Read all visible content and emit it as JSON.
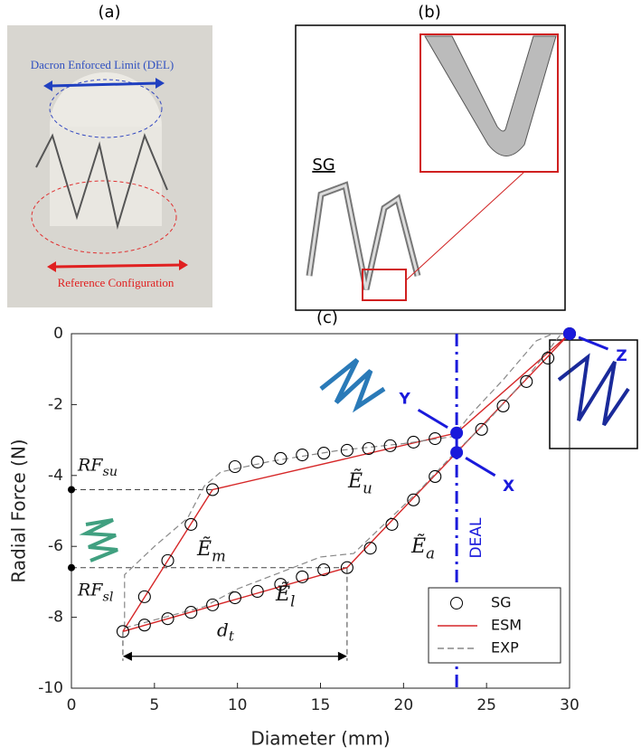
{
  "panels": {
    "a": {
      "label": "(a)",
      "top_text": "Dacron Enforced Limit (DEL)",
      "bottom_text": "Reference Configuration"
    },
    "b": {
      "label": "(b)",
      "stent_label": "SG"
    }
  },
  "chart_data": {
    "type": "line",
    "panel_label": "(c)",
    "xlabel": "Diameter (mm)",
    "ylabel": "Radial Force (N)",
    "xlim": [
      0,
      30
    ],
    "ylim": [
      -10,
      0
    ],
    "xticks": [
      0,
      5,
      10,
      15,
      20,
      25,
      30
    ],
    "yticks": [
      0,
      -2,
      -4,
      -6,
      -8,
      -10
    ],
    "grid": false,
    "legend": "lower right",
    "series": [
      {
        "name": "SG",
        "color": "#000000",
        "style": "marker",
        "x": [
          3.1,
          4.4,
          5.8,
          7.2,
          8.5,
          9.85,
          11.2,
          12.6,
          13.9,
          15.2,
          16.6,
          18.0,
          19.3,
          20.6,
          21.9,
          24.7,
          26.0,
          27.4,
          28.7,
          30.0,
          21.9,
          20.6,
          19.2,
          17.9,
          16.6,
          15.2,
          13.9,
          12.6,
          11.2,
          9.85,
          8.5,
          7.2,
          5.8,
          4.4
        ],
        "y": [
          -8.4,
          -8.22,
          -8.04,
          -7.86,
          -7.65,
          -7.45,
          -7.27,
          -7.07,
          -6.86,
          -6.66,
          -6.6,
          -6.05,
          -5.38,
          -4.69,
          -4.03,
          -2.7,
          -2.04,
          -1.35,
          -0.69,
          0,
          -2.96,
          -3.06,
          -3.16,
          -3.24,
          -3.29,
          -3.37,
          -3.42,
          -3.52,
          -3.62,
          -3.75,
          -4.4,
          -5.38,
          -6.4,
          -7.42
        ]
      },
      {
        "name": "ESM",
        "color": "#d62728",
        "style": "solid",
        "x": [
          3.1,
          16.6,
          30.0,
          23.2,
          8.5,
          3.1
        ],
        "y": [
          -8.4,
          -6.6,
          0,
          -2.8,
          -4.4,
          -8.4
        ]
      },
      {
        "name": "EXP",
        "color": "#888888",
        "style": "dashed",
        "x": [
          3.2,
          3.2,
          5,
          7,
          8,
          9,
          12,
          16,
          20,
          23,
          24,
          26,
          28,
          29,
          null,
          3.2,
          8,
          10,
          15,
          17,
          19,
          21,
          23,
          25,
          27.5,
          29.5
        ],
        "y": [
          -8.3,
          -6.8,
          -6.0,
          -5.2,
          -4.3,
          -3.9,
          -3.6,
          -3.3,
          -3.1,
          -2.9,
          -2.3,
          -1.3,
          -0.2,
          0,
          null,
          -8.3,
          -7.7,
          -7.2,
          -6.3,
          -6.2,
          -5.3,
          -4.4,
          -3.4,
          -2.5,
          -1.2,
          0
        ]
      }
    ],
    "markers": [
      {
        "label": "X",
        "x": 23.2,
        "y": -3.35
      },
      {
        "label": "Y",
        "x": 23.2,
        "y": -2.8
      },
      {
        "label": "Z",
        "x": 30,
        "y": 0
      }
    ],
    "deal_line": {
      "x": 23.2,
      "label": "DEAL"
    },
    "ref_lines": [
      {
        "y": -4.4,
        "x": 8.5,
        "base": "RF",
        "sub": "su"
      },
      {
        "y": -6.6,
        "x": 16.6,
        "base": "RF",
        "sub": "sl"
      }
    ],
    "moduli": [
      {
        "base": "Ẽ",
        "sub": "u"
      },
      {
        "base": "Ẽ",
        "sub": "m"
      },
      {
        "base": "Ẽ",
        "sub": "l"
      },
      {
        "base": "Ẽ",
        "sub": "a"
      }
    ],
    "dt": {
      "x1": 3.1,
      "x2": 16.6,
      "base": "d",
      "sub": "t"
    }
  }
}
